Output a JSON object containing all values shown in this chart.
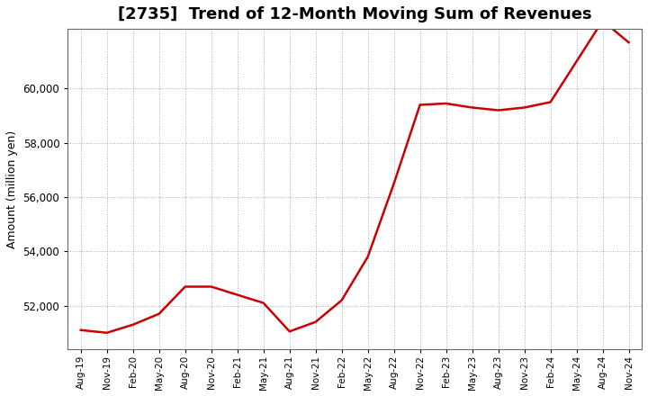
{
  "title": "[2735]  Trend of 12-Month Moving Sum of Revenues",
  "ylabel": "Amount (million yen)",
  "line_color": "#cc0000",
  "line_width": 1.8,
  "background_color": "#ffffff",
  "plot_bg_color": "#ffffff",
  "grid_color": "#aaaaaa",
  "ylim": [
    50400,
    62200
  ],
  "yticks": [
    52000,
    54000,
    56000,
    58000,
    60000
  ],
  "x_labels": [
    "Aug-19",
    "Nov-19",
    "Feb-20",
    "May-20",
    "Aug-20",
    "Nov-20",
    "Feb-21",
    "May-21",
    "Aug-21",
    "Nov-21",
    "Feb-22",
    "May-22",
    "Aug-22",
    "Nov-22",
    "Feb-23",
    "May-23",
    "Aug-23",
    "Nov-23",
    "Feb-24",
    "May-24",
    "Aug-24",
    "Nov-24"
  ],
  "values": [
    51100,
    51000,
    51300,
    51700,
    52700,
    52700,
    52400,
    52100,
    51050,
    51400,
    52200,
    53800,
    56500,
    59400,
    59450,
    59300,
    59200,
    59300,
    59500,
    61000,
    62500,
    61700
  ],
  "title_fontsize": 13,
  "ylabel_fontsize": 9,
  "xtick_fontsize": 7.5,
  "ytick_fontsize": 8.5
}
